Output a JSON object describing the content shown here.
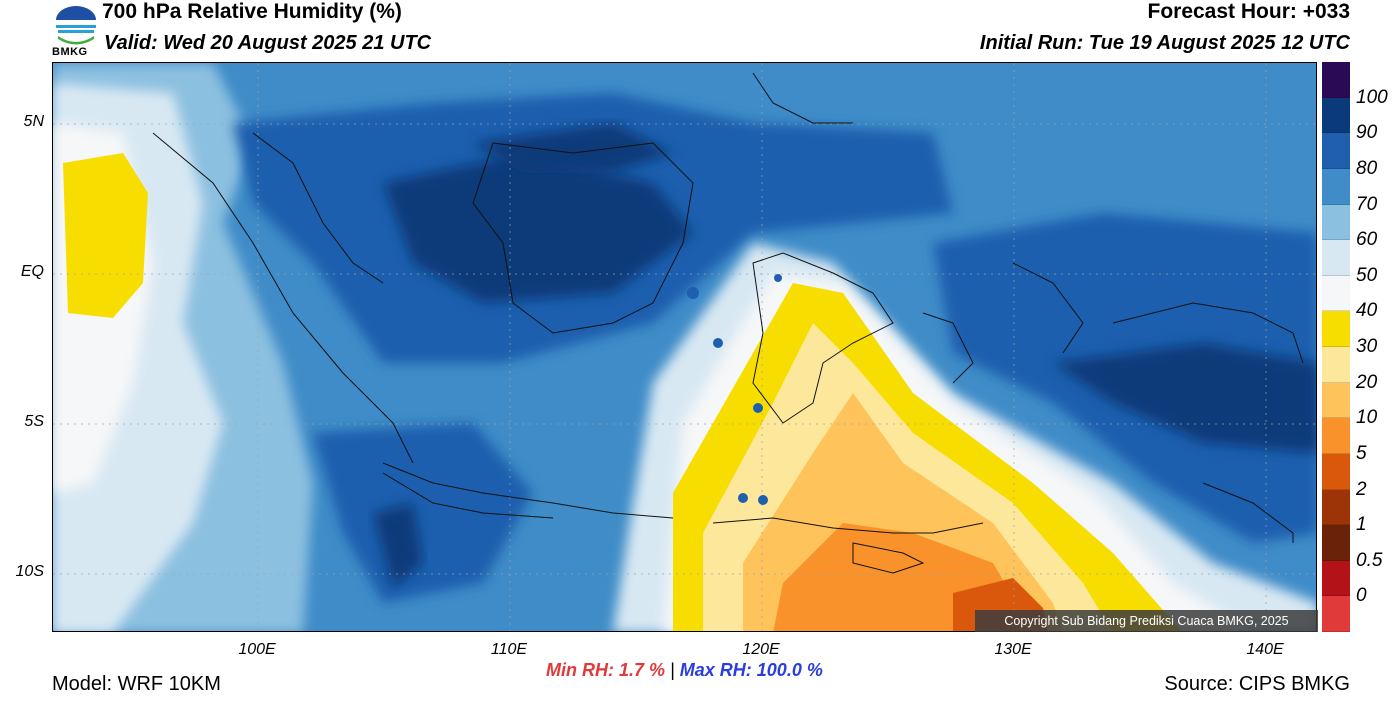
{
  "header": {
    "title": "700 hPa Relative Humidity (%)",
    "valid": "Valid: Wed 20 August 2025 21 UTC",
    "forecast_hour": "Forecast Hour: +033",
    "initial_run": "Initial Run: Tue 19 August 2025 12 UTC"
  },
  "logo": {
    "text": "BMKG",
    "icon": "bmkg-logo-icon"
  },
  "axes": {
    "lat_labels": [
      "5N",
      "EQ",
      "5S",
      "10S"
    ],
    "lon_labels": [
      "100E",
      "110E",
      "120E",
      "130E",
      "140E"
    ]
  },
  "colorbar": {
    "labels": [
      "100",
      "90",
      "80",
      "70",
      "60",
      "50",
      "40",
      "30",
      "20",
      "10",
      "5",
      "2",
      "1",
      "0.5",
      "0"
    ],
    "colors": [
      "#2b0a55",
      "#0b3a7a",
      "#1f5fae",
      "#3f8cc8",
      "#8cc0e0",
      "#d8e8f3",
      "#f6f7f8",
      "#f7de00",
      "#fde79a",
      "#fec35a",
      "#f9922a",
      "#d9580c",
      "#9c3408",
      "#6a2208",
      "#b31218",
      "#e03a3a"
    ]
  },
  "stats": {
    "min_label": "Min RH:",
    "min_value": "1.7 %",
    "separator": "|",
    "max_label": "Max RH:",
    "max_value": "100.0 %"
  },
  "footer": {
    "model": "Model: WRF 10KM",
    "source": "Source: CIPS BMKG",
    "copyright": "Copyright Sub Bidang Prediksi Cuaca BMKG, 2025"
  }
}
